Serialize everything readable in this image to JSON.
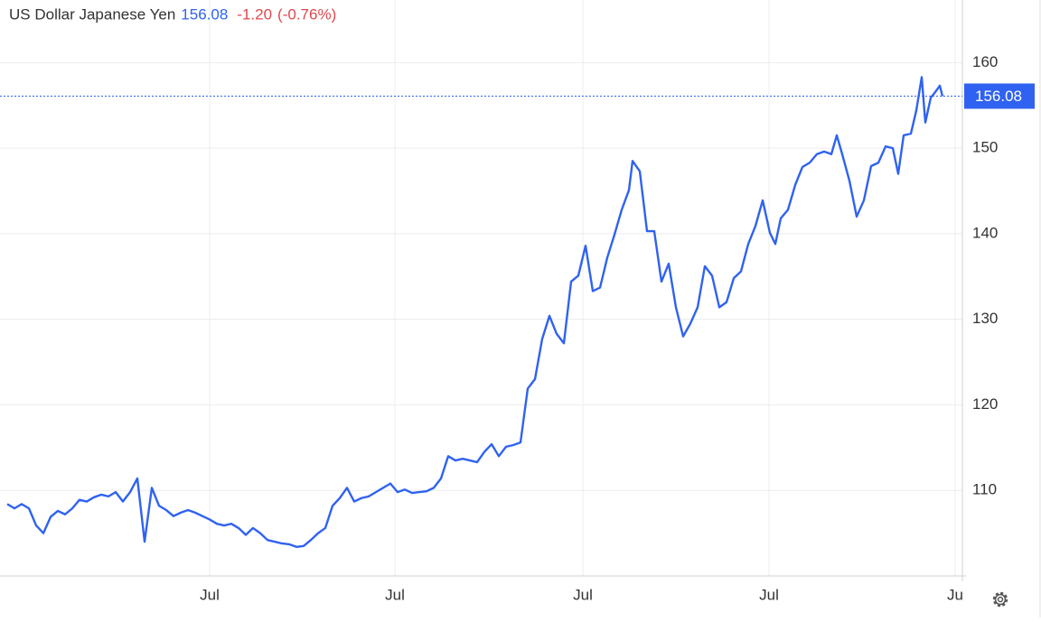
{
  "chart_data": {
    "type": "line",
    "title": "US Dollar Japanese Yen",
    "change": {
      "value": -1.2,
      "label": "-1.20"
    },
    "change_pct": {
      "value": -0.76,
      "label": "(-0.76%)"
    },
    "x": [
      0,
      2,
      4,
      6,
      8,
      10,
      12,
      14,
      16,
      18,
      20,
      22,
      24,
      26,
      28,
      30,
      32,
      34,
      36,
      38,
      40,
      42,
      44,
      46,
      48,
      50,
      52,
      54,
      56,
      58,
      60,
      62,
      64,
      66,
      68,
      70,
      72,
      74,
      76,
      78,
      80,
      82,
      84,
      86,
      88,
      90,
      92,
      94,
      96,
      98,
      100,
      102,
      104,
      106,
      108,
      110,
      112,
      114,
      116,
      118,
      120,
      122,
      124,
      126,
      128,
      130,
      132,
      134,
      136,
      138,
      140,
      142,
      144,
      146,
      148,
      150,
      152,
      154,
      156,
      158,
      160,
      162,
      164,
      166,
      168,
      170,
      172,
      173,
      175,
      177,
      179,
      181,
      183,
      185,
      187,
      189,
      191,
      193,
      195,
      197,
      199,
      201,
      203,
      205,
      207,
      209,
      211,
      212.5,
      214,
      216,
      218,
      220,
      222,
      224,
      226,
      228,
      229.5,
      231,
      233,
      235,
      237,
      239,
      241,
      243,
      245,
      246.5,
      248,
      250,
      251.5,
      253,
      254,
      255.5,
      257,
      258,
      258.75
    ],
    "series": [
      {
        "name": "USD/JPY",
        "color": "#2f62f0",
        "values": [
          108.4,
          107.9,
          108.4,
          107.9,
          105.9,
          105.0,
          106.9,
          107.6,
          107.2,
          107.9,
          108.9,
          108.7,
          109.2,
          109.5,
          109.3,
          109.8,
          108.7,
          109.8,
          111.4,
          104.0,
          110.3,
          108.2,
          107.7,
          107.0,
          107.4,
          107.7,
          107.4,
          107.0,
          106.6,
          106.1,
          105.9,
          106.1,
          105.6,
          104.8,
          105.6,
          105.0,
          104.2,
          104.0,
          103.8,
          103.7,
          103.4,
          103.5,
          104.2,
          105.0,
          105.6,
          108.2,
          109.1,
          110.3,
          108.7,
          109.1,
          109.3,
          109.8,
          110.3,
          110.8,
          109.8,
          110.1,
          109.7,
          109.8,
          109.9,
          110.3,
          111.4,
          114.0,
          113.5,
          113.7,
          113.5,
          113.3,
          114.5,
          115.4,
          114.0,
          115.1,
          115.3,
          115.6,
          121.9,
          123.0,
          127.7,
          130.4,
          128.3,
          127.2,
          134.4,
          135.1,
          138.6,
          133.3,
          133.7,
          137.2,
          139.9,
          142.8,
          145.1,
          148.5,
          147.3,
          140.3,
          140.3,
          134.4,
          136.5,
          131.4,
          128.0,
          129.5,
          131.4,
          136.2,
          135.1,
          131.4,
          132.0,
          134.8,
          135.6,
          138.8,
          140.9,
          143.9,
          140.1,
          138.8,
          141.8,
          142.8,
          145.7,
          147.8,
          148.3,
          149.3,
          149.6,
          149.3,
          151.5,
          149.3,
          146.2,
          142.0,
          143.9,
          147.9,
          148.3,
          150.2,
          150.0,
          147.0,
          151.5,
          151.7,
          154.4,
          158.3,
          153.0,
          155.9,
          156.7,
          157.3,
          156.08
        ]
      }
    ],
    "xlim": [
      0,
      264.25
    ],
    "xticks": [
      {
        "value": 56,
        "label": "Jul"
      },
      {
        "value": 107.25,
        "label": "Jul"
      },
      {
        "value": 159.25,
        "label": "Jul"
      },
      {
        "value": 210.75,
        "label": "Jul"
      },
      {
        "value": 262.25,
        "label": "Ju"
      }
    ],
    "ylim": [
      100,
      167
    ],
    "yticks": [
      110,
      120,
      130,
      140,
      150,
      160
    ],
    "grid": true
  }
}
